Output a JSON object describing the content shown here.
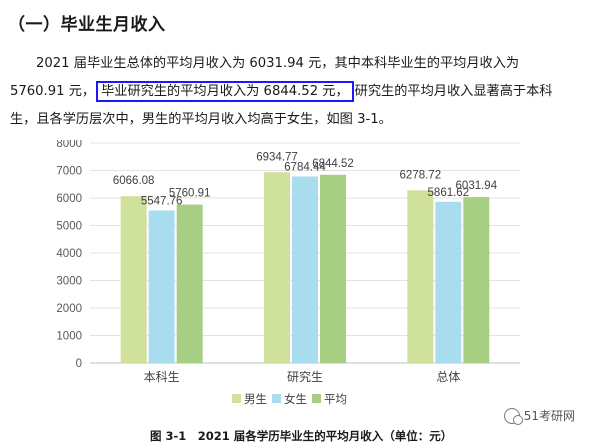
{
  "section": {
    "title": "（一）毕业生月收入"
  },
  "paragraph": {
    "line1": "2021 届毕业生总体的平均月收入为 6031.94 元，其中本科毕业生的平均月收入为",
    "line2_a": "5760.91 元，",
    "line2_highlight": "毕业研究生的平均月收入为 6844.52 元，",
    "line2_b": "研究生的平均月收入显著高于本科",
    "line3": "生，且各学历层次中，男生的平均月收入均高于女生，如图 3-1。"
  },
  "chart_data": {
    "type": "bar",
    "categories": [
      "本科生",
      "研究生",
      "总体"
    ],
    "series": [
      {
        "name": "男生",
        "color": "#cfe19a",
        "values": [
          6066.08,
          6934.77,
          6278.72
        ]
      },
      {
        "name": "女生",
        "color": "#a9dcee",
        "values": [
          5547.76,
          6784.44,
          5861.62
        ]
      },
      {
        "name": "平均",
        "color": "#a7cf83",
        "values": [
          5760.91,
          6844.52,
          6031.94
        ]
      }
    ],
    "data_labels": [
      [
        "6066.08",
        "5547.76",
        "5760.91"
      ],
      [
        "6934.77",
        "6784.44",
        "6844.52"
      ],
      [
        "6278.72",
        "5861.62",
        "6031.94"
      ]
    ],
    "ylim": [
      0,
      8000
    ],
    "yticks": [
      "0",
      "1000",
      "2000",
      "3000",
      "4000",
      "5000",
      "6000",
      "7000",
      "8000"
    ],
    "grid": true,
    "legend_position": "bottom",
    "title": "图 3-1　2021 届各学历毕业生的平均月收入（单位：元）"
  },
  "watermark": {
    "text": "51考研网"
  }
}
